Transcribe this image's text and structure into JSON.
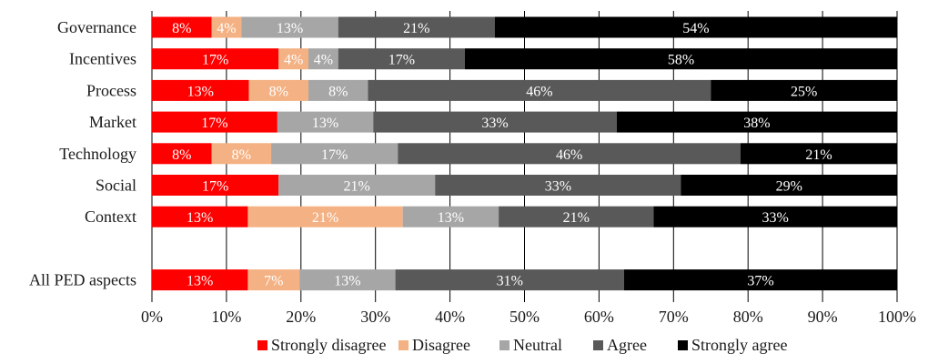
{
  "chart_data": {
    "type": "bar",
    "orientation": "horizontal",
    "stacked": true,
    "percent": true,
    "categories": [
      "Governance",
      "Incentives",
      "Process",
      "Market",
      "Technology",
      "Social",
      "Context",
      "",
      "All PED aspects"
    ],
    "series": [
      {
        "name": "Strongly disagree",
        "color": "#ff0000",
        "values": [
          8,
          17,
          13,
          17,
          8,
          17,
          13,
          null,
          13
        ]
      },
      {
        "name": "Disagree",
        "color": "#f4b183",
        "values": [
          4,
          4,
          8,
          0,
          8,
          0,
          21,
          null,
          7
        ]
      },
      {
        "name": "Neutral",
        "color": "#a6a6a6",
        "values": [
          13,
          4,
          8,
          13,
          17,
          21,
          13,
          null,
          13
        ]
      },
      {
        "name": "Agree",
        "color": "#595959",
        "values": [
          21,
          17,
          46,
          33,
          46,
          33,
          21,
          null,
          31
        ]
      },
      {
        "name": "Strongly agree",
        "color": "#000000",
        "values": [
          54,
          58,
          25,
          38,
          21,
          29,
          33,
          null,
          37
        ]
      }
    ],
    "xlim": [
      0,
      100
    ],
    "xticks": [
      "0%",
      "10%",
      "20%",
      "30%",
      "40%",
      "50%",
      "60%",
      "70%",
      "80%",
      "90%",
      "100%"
    ],
    "grid": true,
    "legend_position": "bottom"
  }
}
